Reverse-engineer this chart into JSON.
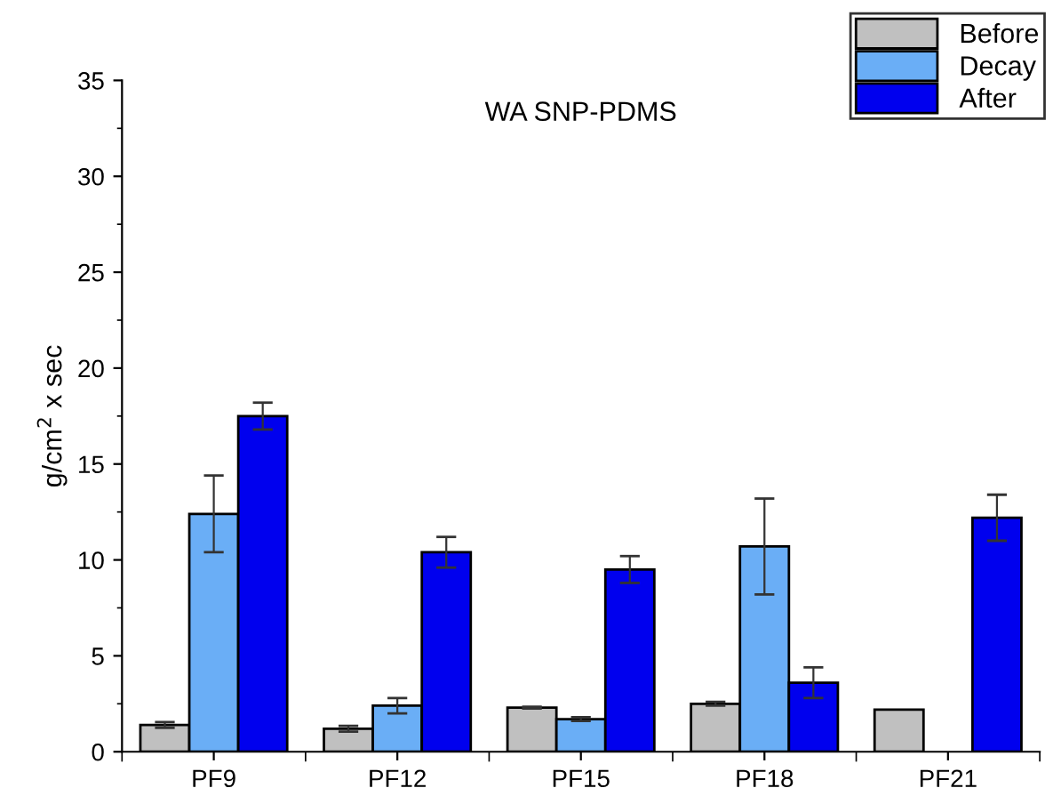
{
  "chart_data": {
    "type": "bar",
    "title": "WA SNP-PDMS",
    "ylabel": "g/cm$^{2}$ x sec",
    "categories": [
      "PF9",
      "PF12",
      "PF15",
      "PF18",
      "PF21"
    ],
    "series": [
      {
        "name": "Before",
        "color": "#c0c0c0",
        "values": [
          1.4,
          1.2,
          2.3,
          2.5,
          2.2
        ],
        "errors": [
          0.15,
          0.15,
          0.05,
          0.1,
          null
        ]
      },
      {
        "name": "Decay",
        "color": "#6aaef6",
        "values": [
          12.4,
          2.4,
          1.7,
          10.7,
          null
        ],
        "errors": [
          2.0,
          0.4,
          0.1,
          2.5,
          null
        ]
      },
      {
        "name": "After",
        "color": "#0000ee",
        "values": [
          17.5,
          10.4,
          9.5,
          3.6,
          12.2
        ],
        "errors": [
          0.7,
          0.8,
          0.7,
          0.8,
          1.2
        ]
      }
    ],
    "ylim": [
      0,
      35
    ],
    "yticks": [
      0,
      5,
      10,
      15,
      20,
      25,
      30,
      35
    ],
    "grid": false,
    "legend": "top right"
  }
}
